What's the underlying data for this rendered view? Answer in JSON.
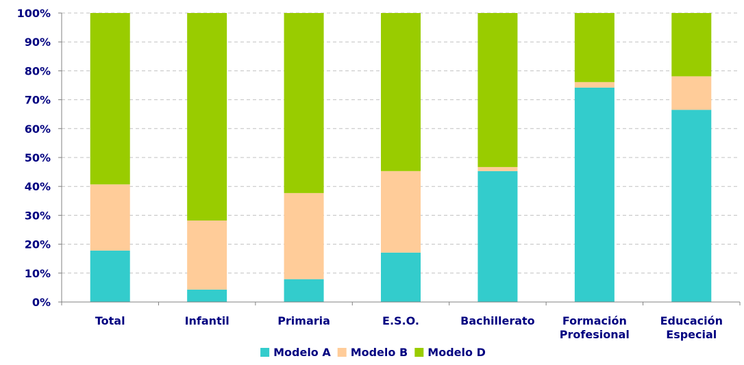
{
  "chart_data": {
    "type": "bar",
    "stacked": true,
    "percent_stacked": true,
    "categories": [
      [
        "Total"
      ],
      [
        "Infantil"
      ],
      [
        "Primaria"
      ],
      [
        "E.S.O."
      ],
      [
        "Bachillerato"
      ],
      [
        "Formación",
        "Profesional"
      ],
      [
        "Educación",
        "Especial"
      ]
    ],
    "series": [
      {
        "name": "Modelo A",
        "color": "#33CCCC",
        "values": [
          17.8,
          4.3,
          7.9,
          17.1,
          45.3,
          74.2,
          66.5
        ]
      },
      {
        "name": "Modelo B",
        "color": "#FFCC99",
        "values": [
          22.9,
          23.9,
          29.8,
          28.2,
          1.4,
          1.9,
          11.6
        ]
      },
      {
        "name": "Modelo D",
        "color": "#99CC00",
        "values": [
          59.3,
          71.8,
          62.3,
          54.7,
          53.3,
          23.9,
          21.9
        ]
      }
    ],
    "yticks": [
      "0%",
      "10%",
      "20%",
      "30%",
      "40%",
      "50%",
      "60%",
      "70%",
      "80%",
      "90%",
      "100%"
    ],
    "ylim": [
      0,
      100
    ],
    "grid": true,
    "grid_style": "dashed",
    "legend_position": "bottom",
    "text_color": "#000080",
    "axis_color": "#808080",
    "grid_color": "#C0C0C0"
  }
}
